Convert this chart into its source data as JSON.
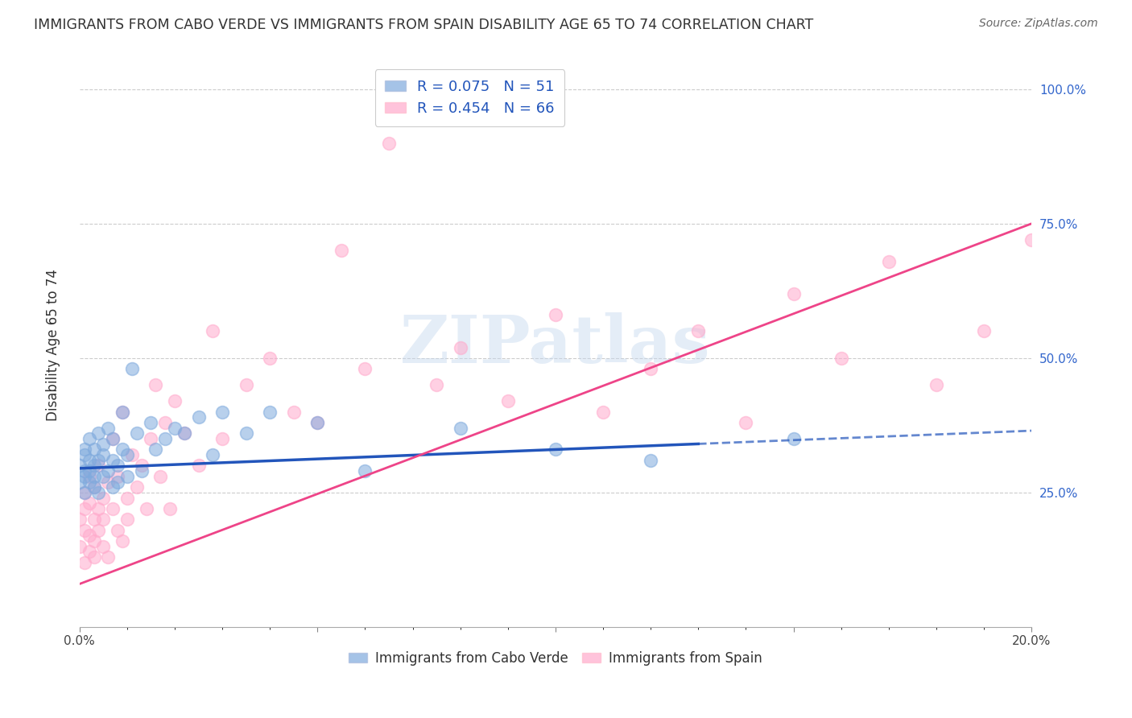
{
  "title": "IMMIGRANTS FROM CABO VERDE VS IMMIGRANTS FROM SPAIN DISABILITY AGE 65 TO 74 CORRELATION CHART",
  "source": "Source: ZipAtlas.com",
  "ylabel": "Disability Age 65 to 74",
  "cabo_verde_color": "#7faadd",
  "spain_color": "#ffaacc",
  "cabo_verde_line_color": "#2255bb",
  "spain_line_color": "#ee4488",
  "cabo_verde_R": 0.075,
  "cabo_verde_N": 51,
  "spain_R": 0.454,
  "spain_N": 66,
  "x_lim": [
    0.0,
    0.2
  ],
  "y_lim": [
    0.0,
    1.05
  ],
  "watermark_text": "ZIPatlas",
  "legend_label_cv": "R = 0.075   N = 51",
  "legend_label_sp": "R = 0.454   N = 66",
  "bottom_label_cv": "Immigrants from Cabo Verde",
  "bottom_label_sp": "Immigrants from Spain",
  "cabo_verde_x": [
    0.0,
    0.0,
    0.001,
    0.001,
    0.001,
    0.001,
    0.001,
    0.002,
    0.002,
    0.002,
    0.002,
    0.003,
    0.003,
    0.003,
    0.003,
    0.004,
    0.004,
    0.004,
    0.005,
    0.005,
    0.005,
    0.006,
    0.006,
    0.007,
    0.007,
    0.007,
    0.008,
    0.008,
    0.009,
    0.009,
    0.01,
    0.01,
    0.011,
    0.012,
    0.013,
    0.015,
    0.016,
    0.018,
    0.02,
    0.022,
    0.025,
    0.028,
    0.03,
    0.035,
    0.04,
    0.05,
    0.06,
    0.08,
    0.1,
    0.12,
    0.15
  ],
  "cabo_verde_y": [
    0.3,
    0.27,
    0.33,
    0.29,
    0.25,
    0.32,
    0.28,
    0.35,
    0.27,
    0.31,
    0.29,
    0.26,
    0.33,
    0.3,
    0.28,
    0.36,
    0.31,
    0.25,
    0.34,
    0.28,
    0.32,
    0.29,
    0.37,
    0.31,
    0.26,
    0.35,
    0.3,
    0.27,
    0.33,
    0.4,
    0.32,
    0.28,
    0.48,
    0.36,
    0.29,
    0.38,
    0.33,
    0.35,
    0.37,
    0.36,
    0.39,
    0.32,
    0.4,
    0.36,
    0.4,
    0.38,
    0.29,
    0.37,
    0.33,
    0.31,
    0.35
  ],
  "spain_x": [
    0.0,
    0.0,
    0.001,
    0.001,
    0.001,
    0.001,
    0.002,
    0.002,
    0.002,
    0.002,
    0.003,
    0.003,
    0.003,
    0.003,
    0.004,
    0.004,
    0.004,
    0.005,
    0.005,
    0.005,
    0.006,
    0.006,
    0.007,
    0.007,
    0.008,
    0.008,
    0.009,
    0.009,
    0.01,
    0.01,
    0.011,
    0.012,
    0.013,
    0.014,
    0.015,
    0.016,
    0.017,
    0.018,
    0.019,
    0.02,
    0.022,
    0.025,
    0.028,
    0.03,
    0.035,
    0.04,
    0.045,
    0.05,
    0.055,
    0.06,
    0.065,
    0.07,
    0.075,
    0.08,
    0.09,
    0.1,
    0.11,
    0.12,
    0.13,
    0.14,
    0.15,
    0.16,
    0.17,
    0.18,
    0.19,
    0.2
  ],
  "spain_y": [
    0.15,
    0.2,
    0.18,
    0.22,
    0.12,
    0.25,
    0.17,
    0.23,
    0.14,
    0.28,
    0.2,
    0.16,
    0.26,
    0.13,
    0.22,
    0.18,
    0.3,
    0.15,
    0.24,
    0.2,
    0.27,
    0.13,
    0.22,
    0.35,
    0.18,
    0.28,
    0.16,
    0.4,
    0.24,
    0.2,
    0.32,
    0.26,
    0.3,
    0.22,
    0.35,
    0.45,
    0.28,
    0.38,
    0.22,
    0.42,
    0.36,
    0.3,
    0.55,
    0.35,
    0.45,
    0.5,
    0.4,
    0.38,
    0.7,
    0.48,
    0.9,
    0.95,
    0.45,
    0.52,
    0.42,
    0.58,
    0.4,
    0.48,
    0.55,
    0.38,
    0.62,
    0.5,
    0.68,
    0.45,
    0.55,
    0.72
  ]
}
